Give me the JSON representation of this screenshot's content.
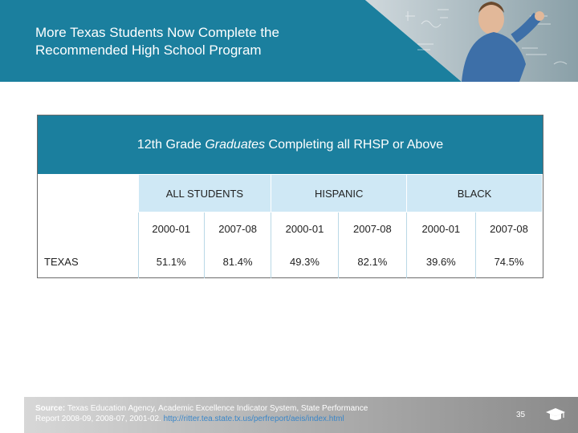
{
  "slide": {
    "title_line1": "More Texas Students Now Complete the",
    "title_line2": "Recommended High School Program",
    "page_number": "35"
  },
  "table": {
    "title_pre": "12th Grade ",
    "title_em": "Graduates",
    "title_post": " Completing all RHSP or Above",
    "groups": [
      "ALL STUDENTS",
      "HISPANIC",
      "BLACK"
    ],
    "years": [
      "2000-01",
      "2007-08",
      "2000-01",
      "2007-08",
      "2000-01",
      "2007-08"
    ],
    "rows": [
      {
        "label": "TEXAS",
        "values": [
          "51.1%",
          "81.4%",
          "49.3%",
          "82.1%",
          "39.6%",
          "74.5%"
        ]
      }
    ]
  },
  "footer": {
    "source_label": "Source:",
    "source_line1": " Texas Education Agency, Academic Excellence Indicator System, State Performance",
    "source_line2": "Report 2008-09, 2008-07, 2001-02.",
    "source_link": " http://ritter.tea.state.tx.us/perfreport/aeis/index.html"
  },
  "colors": {
    "banner_teal": "#1b7f9e",
    "header_cell": "#cfe8f5",
    "footer_gray": "#a9a9a9"
  },
  "icons": [
    "graduation-cap-icon"
  ]
}
